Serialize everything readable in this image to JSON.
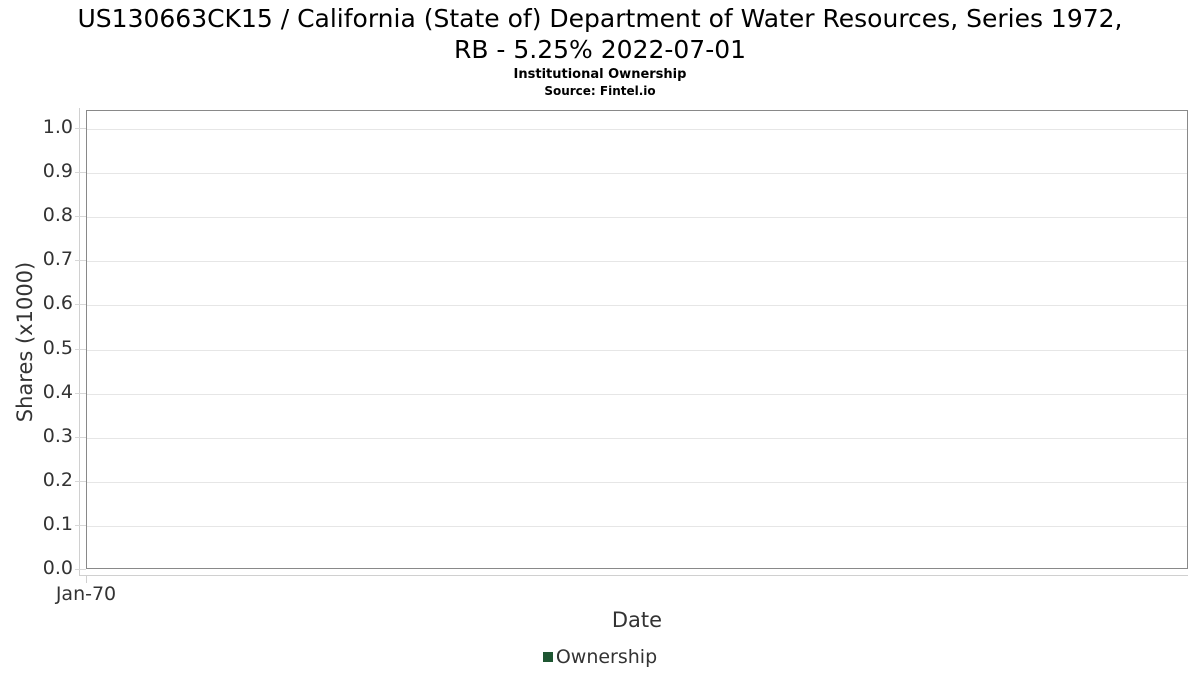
{
  "header": {
    "title_line1": "US130663CK15 / California (State of) Department of Water Resources, Series 1972,",
    "title_line2": "RB - 5.25% 2022-07-01",
    "subtitle": "Institutional Ownership",
    "source": "Source: Fintel.io"
  },
  "chart_data": {
    "type": "line",
    "title": "US130663CK15 / California (State of) Department of Water Resources, Series 1972, RB - 5.25% 2022-07-01",
    "subtitle": "Institutional Ownership",
    "source": "Source: Fintel.io",
    "xlabel": "Date",
    "ylabel": "Shares (x1000)",
    "x_ticks": [
      "Jan-70"
    ],
    "y_ticks": [
      0.0,
      0.1,
      0.2,
      0.3,
      0.4,
      0.5,
      0.6,
      0.7,
      0.8,
      0.9,
      1.0
    ],
    "ylim": [
      0.0,
      1.04
    ],
    "grid": true,
    "legend_position": "bottom-center",
    "legend": [
      {
        "name": "Ownership",
        "color": "#1e5632"
      }
    ],
    "series": [
      {
        "name": "Ownership",
        "x": [],
        "values": []
      }
    ]
  },
  "colors": {
    "background": "#ffffff",
    "title_text": "#000000",
    "axis_text": "#333333",
    "gridline": "#e6e6e6",
    "plot_border": "#898989",
    "axis_line": "#d0d0d0",
    "legend_marker": "#1e5632"
  }
}
